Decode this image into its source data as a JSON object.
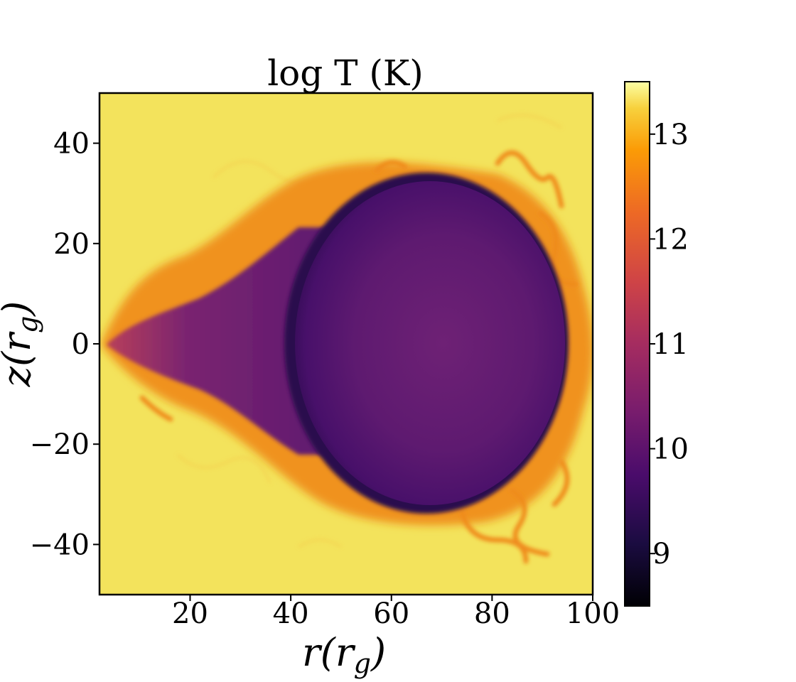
{
  "chart_data": {
    "type": "heatmap",
    "title": "log T (K)",
    "xlabel": "r(r_g)",
    "ylabel": "z(r_g)",
    "xlim": [
      2,
      100
    ],
    "ylim": [
      -50,
      50
    ],
    "x_ticks": [
      20,
      40,
      60,
      80,
      100
    ],
    "y_ticks": [
      -40,
      -20,
      0,
      20,
      40
    ],
    "x_tick_labels": [
      "20",
      "40",
      "60",
      "80",
      "100"
    ],
    "y_tick_labels": [
      "−40",
      "−20",
      "0",
      "20",
      "40"
    ],
    "colormap": "inferno",
    "colorbar": {
      "range": [
        8.5,
        13.5
      ],
      "ticks": [
        9,
        10,
        11,
        12,
        13
      ],
      "tick_labels": [
        "9",
        "10",
        "11",
        "12",
        "13"
      ]
    },
    "colors": {
      "hot_background": "#f3e35c",
      "cold_core": "#5a1a6e",
      "cold_core_center": "#6a1f73",
      "boundary_dark": "#2a0b4a",
      "boundary_hot": "#f08a17",
      "boundary_orange": "#f5a623"
    },
    "features": [
      {
        "name": "cold bubble",
        "r_center": 67,
        "z_center": 0,
        "r_radius": 24,
        "z_radius": 33,
        "logT": 9.9
      },
      {
        "name": "cold tail",
        "r_start": 4,
        "r_end": 50,
        "z_half_width_end": 24,
        "logT": 10.2
      },
      {
        "name": "hot ambient medium",
        "logT": 13.2
      }
    ]
  }
}
